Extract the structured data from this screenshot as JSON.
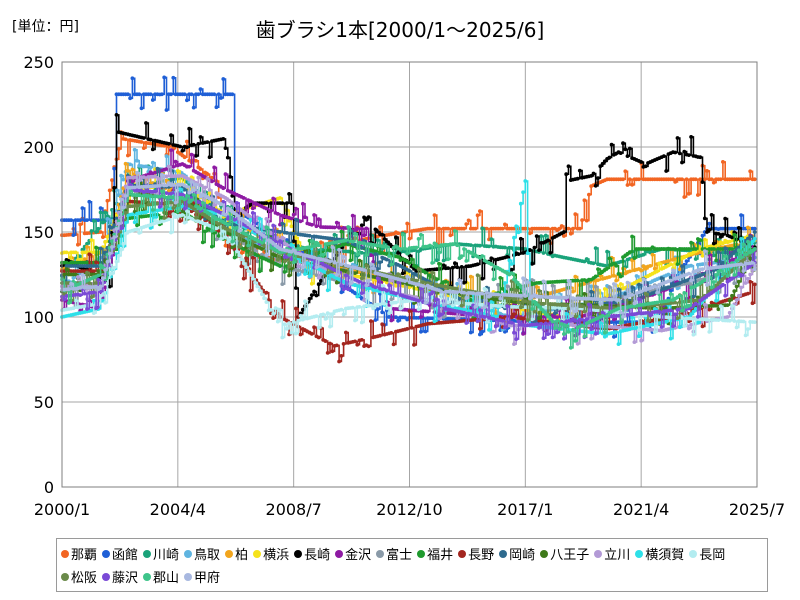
{
  "chart_data": {
    "type": "line",
    "title": "歯ブラシ1本[2000/1～2025/6]",
    "unit_label": "[単位：円]",
    "xlabel": "",
    "ylabel": "",
    "x_ticks": [
      "2000/1",
      "2004/4",
      "2008/7",
      "2012/10",
      "2017/1",
      "2021/4",
      "2025/7"
    ],
    "x_range": [
      "2000-01",
      "2025-07"
    ],
    "ylim": [
      0,
      250
    ],
    "y_ticks": [
      0,
      50,
      100,
      150,
      200,
      250
    ],
    "grid": true,
    "legend_position": "bottom",
    "series": [
      {
        "name": "那覇",
        "color": "#f26522",
        "points": [
          [
            "2000-01",
            148
          ],
          [
            "2001-06",
            150
          ],
          [
            "2002-03",
            205
          ],
          [
            "2004-01",
            200
          ],
          [
            "2005-09",
            180
          ],
          [
            "2006-01",
            142
          ],
          [
            "2008-01",
            133
          ],
          [
            "2011-06",
            147
          ],
          [
            "2013-06",
            152
          ],
          [
            "2019-01",
            152
          ],
          [
            "2019-06",
            177
          ],
          [
            "2020-01",
            181
          ],
          [
            "2025-06",
            181
          ]
        ]
      },
      {
        "name": "函館",
        "color": "#1f5fd6",
        "points": [
          [
            "2000-01",
            157
          ],
          [
            "2001-11",
            157
          ],
          [
            "2002-01",
            231
          ],
          [
            "2006-04",
            231
          ],
          [
            "2006-05",
            163
          ],
          [
            "2007-01",
            157
          ],
          [
            "2008-06",
            140
          ],
          [
            "2012-01",
            100
          ],
          [
            "2018-01",
            97
          ],
          [
            "2022-01",
            97
          ],
          [
            "2022-06",
            120
          ],
          [
            "2023-08",
            150
          ],
          [
            "2023-09",
            152
          ],
          [
            "2025-06",
            152
          ]
        ]
      },
      {
        "name": "川崎",
        "color": "#1aa37a",
        "points": [
          [
            "2000-01",
            124
          ],
          [
            "2001-04",
            150
          ],
          [
            "2002-06",
            176
          ],
          [
            "2004-06",
            182
          ],
          [
            "2006-01",
            158
          ],
          [
            "2007-01",
            150
          ],
          [
            "2009-01",
            140
          ],
          [
            "2012-01",
            137
          ],
          [
            "2014-06",
            143
          ],
          [
            "2017-01",
            140
          ],
          [
            "2018-06",
            135
          ],
          [
            "2020-01",
            130
          ],
          [
            "2022-01",
            140
          ],
          [
            "2025-06",
            137
          ]
        ]
      },
      {
        "name": "鳥取",
        "color": "#5fb4e0",
        "points": [
          [
            "2000-01",
            118
          ],
          [
            "2001-06",
            135
          ],
          [
            "2002-06",
            190
          ],
          [
            "2004-06",
            185
          ],
          [
            "2006-01",
            150
          ],
          [
            "2008-01",
            138
          ],
          [
            "2010-06",
            130
          ],
          [
            "2013-01",
            120
          ],
          [
            "2016-06",
            100
          ],
          [
            "2020-01",
            110
          ],
          [
            "2023-01",
            130
          ],
          [
            "2025-06",
            135
          ]
        ]
      },
      {
        "name": "柏",
        "color": "#f2a51d",
        "points": [
          [
            "2000-01",
            128
          ],
          [
            "2001-09",
            140
          ],
          [
            "2002-06",
            186
          ],
          [
            "2004-06",
            170
          ],
          [
            "2006-01",
            160
          ],
          [
            "2008-01",
            140
          ],
          [
            "2010-06",
            128
          ],
          [
            "2013-06",
            118
          ],
          [
            "2017-01",
            110
          ],
          [
            "2020-06",
            125
          ],
          [
            "2023-06",
            138
          ],
          [
            "2025-06",
            145
          ]
        ]
      },
      {
        "name": "横浜",
        "color": "#f5e21b",
        "points": [
          [
            "2000-01",
            138
          ],
          [
            "2001-06",
            138
          ],
          [
            "2002-06",
            175
          ],
          [
            "2004-06",
            178
          ],
          [
            "2006-01",
            160
          ],
          [
            "2008-01",
            170
          ],
          [
            "2009-01",
            130
          ],
          [
            "2012-01",
            120
          ],
          [
            "2015-01",
            110
          ],
          [
            "2018-06",
            100
          ],
          [
            "2021-01",
            120
          ],
          [
            "2023-06",
            140
          ],
          [
            "2025-06",
            148
          ]
        ]
      },
      {
        "name": "長崎",
        "color": "#000000",
        "points": [
          [
            "2000-01",
            135
          ],
          [
            "2001-10",
            120
          ],
          [
            "2002-01",
            209
          ],
          [
            "2004-06",
            200
          ],
          [
            "2006-01",
            205
          ],
          [
            "2006-05",
            160
          ],
          [
            "2007-01",
            167
          ],
          [
            "2008-06",
            167
          ],
          [
            "2008-09",
            100
          ],
          [
            "2011-01",
            160
          ],
          [
            "2012-01",
            143
          ],
          [
            "2013-01",
            127
          ],
          [
            "2015-01",
            130
          ],
          [
            "2017-01",
            138
          ],
          [
            "2018-06",
            150
          ],
          [
            "2018-07",
            180
          ],
          [
            "2019-06",
            183
          ],
          [
            "2020-01",
            193
          ],
          [
            "2020-06",
            197
          ],
          [
            "2021-06",
            190
          ],
          [
            "2022-06",
            197
          ],
          [
            "2023-06",
            194
          ],
          [
            "2023-09",
            150
          ],
          [
            "2024-06",
            148
          ],
          [
            "2025-06",
            141
          ]
        ]
      },
      {
        "name": "金沢",
        "color": "#8e1aa3",
        "points": [
          [
            "2000-01",
            110
          ],
          [
            "2001-06",
            105
          ],
          [
            "2002-06",
            180
          ],
          [
            "2004-06",
            190
          ],
          [
            "2006-01",
            175
          ],
          [
            "2008-01",
            160
          ],
          [
            "2009-06",
            153
          ],
          [
            "2011-01",
            152
          ],
          [
            "2012-01",
            105
          ],
          [
            "2016-01",
            100
          ],
          [
            "2019-01",
            100
          ],
          [
            "2022-01",
            115
          ],
          [
            "2025-06",
            139
          ]
        ]
      },
      {
        "name": "富士",
        "color": "#8a9aa8",
        "points": [
          [
            "2000-01",
            115
          ],
          [
            "2001-06",
            118
          ],
          [
            "2002-06",
            175
          ],
          [
            "2004-06",
            168
          ],
          [
            "2006-01",
            150
          ],
          [
            "2008-01",
            130
          ],
          [
            "2011-01",
            118
          ],
          [
            "2014-01",
            108
          ],
          [
            "2017-06",
            112
          ],
          [
            "2020-01",
            110
          ],
          [
            "2023-01",
            120
          ],
          [
            "2025-06",
            130
          ]
        ]
      },
      {
        "name": "福井",
        "color": "#1f9a2e",
        "points": [
          [
            "2000-01",
            132
          ],
          [
            "2001-06",
            132
          ],
          [
            "2002-06",
            158
          ],
          [
            "2004-06",
            162
          ],
          [
            "2006-01",
            145
          ],
          [
            "2008-01",
            130
          ],
          [
            "2010-06",
            143
          ],
          [
            "2012-06",
            135
          ],
          [
            "2015-01",
            110
          ],
          [
            "2017-06",
            120
          ],
          [
            "2019-06",
            122
          ],
          [
            "2021-01",
            140
          ],
          [
            "2023-06",
            140
          ],
          [
            "2025-06",
            140
          ]
        ]
      },
      {
        "name": "長野",
        "color": "#a3261f",
        "points": [
          [
            "2000-01",
            127
          ],
          [
            "2001-06",
            127
          ],
          [
            "2002-06",
            168
          ],
          [
            "2004-06",
            166
          ],
          [
            "2006-01",
            148
          ],
          [
            "2008-01",
            100
          ],
          [
            "2010-01",
            83
          ],
          [
            "2011-06",
            88
          ],
          [
            "2013-06",
            96
          ],
          [
            "2016-06",
            100
          ],
          [
            "2020-01",
            93
          ],
          [
            "2022-06",
            100
          ],
          [
            "2025-06",
            115
          ]
        ]
      },
      {
        "name": "岡崎",
        "color": "#2e6a8e",
        "points": [
          [
            "2000-01",
            130
          ],
          [
            "2001-06",
            130
          ],
          [
            "2002-06",
            178
          ],
          [
            "2004-06",
            176
          ],
          [
            "2006-01",
            155
          ],
          [
            "2008-01",
            150
          ],
          [
            "2010-06",
            145
          ],
          [
            "2012-06",
            130
          ],
          [
            "2015-01",
            107
          ],
          [
            "2018-06",
            105
          ],
          [
            "2021-01",
            110
          ],
          [
            "2024-01",
            128
          ],
          [
            "2025-06",
            150
          ]
        ]
      },
      {
        "name": "八王子",
        "color": "#3f7a1a",
        "points": [
          [
            "2000-01",
            125
          ],
          [
            "2001-06",
            125
          ],
          [
            "2002-06",
            172
          ],
          [
            "2004-06",
            170
          ],
          [
            "2006-01",
            150
          ],
          [
            "2008-01",
            135
          ],
          [
            "2011-01",
            125
          ],
          [
            "2014-01",
            115
          ],
          [
            "2017-01",
            108
          ],
          [
            "2019-06",
            107
          ],
          [
            "2022-01",
            105
          ],
          [
            "2024-06",
            107
          ],
          [
            "2025-06",
            140
          ]
        ]
      },
      {
        "name": "立川",
        "color": "#b39ad6",
        "points": [
          [
            "2000-01",
            118
          ],
          [
            "2001-06",
            120
          ],
          [
            "2002-06",
            182
          ],
          [
            "2004-06",
            183
          ],
          [
            "2006-01",
            170
          ],
          [
            "2008-01",
            145
          ],
          [
            "2010-06",
            120
          ],
          [
            "2013-06",
            110
          ],
          [
            "2016-06",
            95
          ],
          [
            "2019-06",
            95
          ],
          [
            "2022-01",
            92
          ],
          [
            "2024-06",
            100
          ],
          [
            "2025-06",
            130
          ]
        ]
      },
      {
        "name": "横須賀",
        "color": "#2ee0e8",
        "points": [
          [
            "2000-01",
            100
          ],
          [
            "2001-06",
            105
          ],
          [
            "2002-06",
            160
          ],
          [
            "2004-06",
            165
          ],
          [
            "2006-01",
            160
          ],
          [
            "2008-01",
            140
          ],
          [
            "2010-06",
            120
          ],
          [
            "2013-01",
            110
          ],
          [
            "2016-01",
            100
          ],
          [
            "2017-01",
            180
          ],
          [
            "2017-03",
            95
          ],
          [
            "2020-01",
            90
          ],
          [
            "2023-01",
            100
          ],
          [
            "2025-06",
            146
          ]
        ]
      },
      {
        "name": "長岡",
        "color": "#b3ecf0",
        "points": [
          [
            "2000-01",
            104
          ],
          [
            "2001-06",
            108
          ],
          [
            "2002-06",
            150
          ],
          [
            "2004-06",
            160
          ],
          [
            "2006-01",
            150
          ],
          [
            "2008-01",
            95
          ],
          [
            "2010-06",
            105
          ],
          [
            "2013-01",
            110
          ],
          [
            "2016-06",
            106
          ],
          [
            "2019-01",
            105
          ],
          [
            "2022-01",
            100
          ],
          [
            "2025-06",
            97
          ]
        ]
      },
      {
        "name": "松阪",
        "color": "#6a8a4a",
        "points": [
          [
            "2000-01",
            120
          ],
          [
            "2001-06",
            120
          ],
          [
            "2002-06",
            165
          ],
          [
            "2004-06",
            168
          ],
          [
            "2006-01",
            152
          ],
          [
            "2008-01",
            138
          ],
          [
            "2011-01",
            128
          ],
          [
            "2014-01",
            118
          ],
          [
            "2017-06",
            108
          ],
          [
            "2020-06",
            105
          ],
          [
            "2023-06",
            110
          ],
          [
            "2025-06",
            140
          ]
        ]
      },
      {
        "name": "藤沢",
        "color": "#7a4ad6",
        "points": [
          [
            "2000-01",
            112
          ],
          [
            "2001-06",
            115
          ],
          [
            "2002-06",
            175
          ],
          [
            "2004-06",
            172
          ],
          [
            "2006-01",
            160
          ],
          [
            "2008-01",
            143
          ],
          [
            "2011-01",
            120
          ],
          [
            "2014-01",
            105
          ],
          [
            "2017-01",
            95
          ],
          [
            "2020-01",
            100
          ],
          [
            "2023-01",
            105
          ],
          [
            "2025-06",
            132
          ]
        ]
      },
      {
        "name": "郡山",
        "color": "#3ec48a",
        "points": [
          [
            "2000-01",
            115
          ],
          [
            "2001-06",
            125
          ],
          [
            "2002-06",
            172
          ],
          [
            "2004-06",
            170
          ],
          [
            "2006-01",
            155
          ],
          [
            "2008-01",
            138
          ],
          [
            "2010-06",
            145
          ],
          [
            "2012-06",
            140
          ],
          [
            "2014-06",
            143
          ],
          [
            "2016-06",
            125
          ],
          [
            "2018-06",
            90
          ],
          [
            "2020-06",
            105
          ],
          [
            "2022-06",
            110
          ],
          [
            "2025-06",
            140
          ]
        ]
      },
      {
        "name": "甲府",
        "color": "#a8b8e0",
        "points": [
          [
            "2000-01",
            116
          ],
          [
            "2001-06",
            118
          ],
          [
            "2002-06",
            176
          ],
          [
            "2004-06",
            178
          ],
          [
            "2006-01",
            165
          ],
          [
            "2008-01",
            140
          ],
          [
            "2011-01",
            128
          ],
          [
            "2014-01",
            115
          ],
          [
            "2017-06",
            112
          ],
          [
            "2020-06",
            110
          ],
          [
            "2023-06",
            128
          ],
          [
            "2025-06",
            132
          ]
        ]
      }
    ]
  }
}
